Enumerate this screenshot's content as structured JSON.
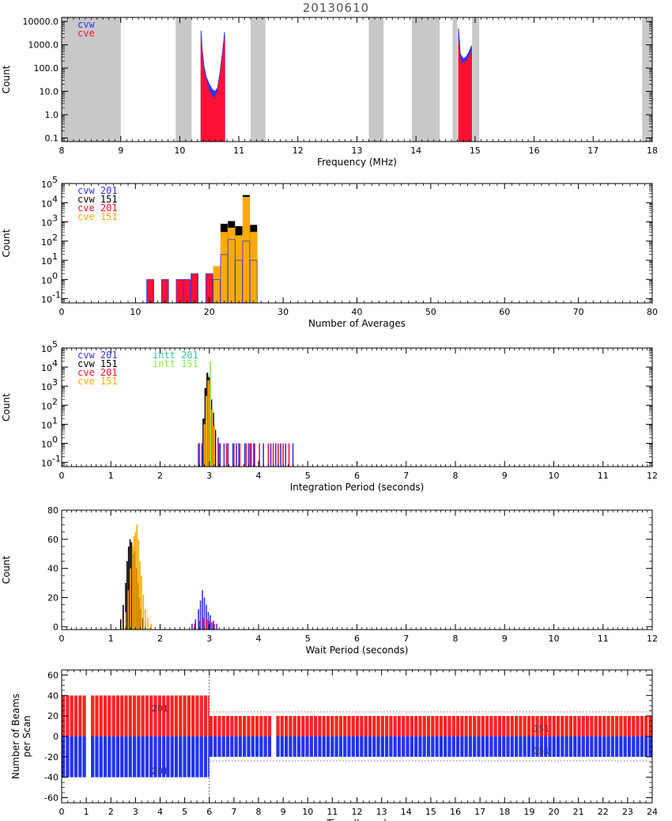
{
  "figure_title": "20130610",
  "colors": {
    "cvw201": "#3333ee",
    "cvw151": "#000000",
    "cve201": "#ff1133",
    "cve151": "#ffaa00",
    "intt201": "#33cc99",
    "intt151": "#88ee44",
    "band": "#c8c8c8",
    "beams_positive": "#ff2222",
    "beams_negative": "#2233ee"
  },
  "chart_data": [
    {
      "id": "frequency",
      "type": "area",
      "xlabel": "Frequency (MHz)",
      "ylabel": "Count",
      "yscale": "log",
      "xlim": [
        8,
        18
      ],
      "ylim": [
        0.07,
        15000
      ],
      "xticks": [
        8,
        9,
        10,
        11,
        12,
        13,
        14,
        15,
        16,
        17,
        18
      ],
      "yticks": [
        0.1,
        1,
        10,
        100,
        1000,
        10000
      ],
      "ytick_labels": [
        "0.1",
        "1.0",
        "10.0",
        "100.0",
        "1000.0",
        "10000.0"
      ],
      "legend": [
        "cvw",
        "cve"
      ],
      "excluded_bands": [
        [
          8.0,
          9.0
        ],
        [
          9.93,
          10.2
        ],
        [
          11.2,
          11.45
        ],
        [
          13.2,
          13.45
        ],
        [
          13.93,
          14.4
        ],
        [
          14.62,
          14.7
        ],
        [
          14.95,
          15.07
        ],
        [
          17.83,
          18.0
        ]
      ],
      "series": [
        {
          "name": "cvw",
          "color_key": "cvw201",
          "segments": [
            {
              "x": [
                10.36,
                10.38,
                10.41,
                10.45,
                10.5,
                10.55,
                10.6,
                10.64,
                10.68,
                10.72,
                10.76
              ],
              "y": [
                4000,
                600,
                120,
                40,
                20,
                12,
                10,
                14,
                60,
                400,
                3500
              ]
            },
            {
              "x": [
                14.72,
                14.75,
                14.8,
                14.85,
                14.9,
                14.94
              ],
              "y": [
                5000,
                400,
                250,
                300,
                500,
                900
              ]
            }
          ]
        },
        {
          "name": "cve",
          "color_key": "cve201",
          "segments": [
            {
              "x": [
                10.36,
                10.38,
                10.41,
                10.45,
                10.5,
                10.55,
                10.6,
                10.64,
                10.68,
                10.72,
                10.76
              ],
              "y": [
                1500,
                250,
                70,
                25,
                10,
                6,
                5,
                10,
                40,
                250,
                1800
              ]
            },
            {
              "x": [
                14.72,
                14.75,
                14.8,
                14.85,
                14.9,
                14.94
              ],
              "y": [
                1200,
                200,
                150,
                200,
                300,
                500
              ]
            }
          ]
        }
      ]
    },
    {
      "id": "averages",
      "type": "bar",
      "xlabel": "Number of Averages",
      "ylabel": "Count",
      "yscale": "log",
      "xlim": [
        0,
        80
      ],
      "ylim": [
        0.06,
        100000
      ],
      "xticks": [
        0,
        10,
        20,
        30,
        40,
        50,
        60,
        70,
        80
      ],
      "yticks": [
        0.1,
        1,
        10,
        100,
        1000,
        10000,
        100000
      ],
      "ytick_labels": [
        "10",
        "10",
        "10",
        "10",
        "10",
        "10",
        "10"
      ],
      "ytick_exponents": [
        "-1",
        "0",
        "1",
        "2",
        "3",
        "4",
        "5"
      ],
      "legend": [
        "cvw 201",
        "cvw 151",
        "cve 201",
        "cve 151"
      ],
      "series": [
        {
          "name": "cvw 151",
          "color_key": "cvw151",
          "style": "fill",
          "x": [
            22,
            23,
            24,
            25,
            26
          ],
          "y": [
            800,
            1100,
            600,
            25000,
            700
          ]
        },
        {
          "name": "cve 201",
          "color_key": "cve201",
          "style": "fill",
          "x": [
            12,
            14,
            16,
            17,
            18,
            20,
            21
          ],
          "y": [
            1,
            1,
            1,
            1,
            2,
            2,
            1
          ]
        },
        {
          "name": "cve 151",
          "color_key": "cve151",
          "style": "fill",
          "x": [
            21,
            22,
            23,
            24,
            25,
            26
          ],
          "y": [
            5,
            300,
            500,
            200,
            20000,
            300
          ]
        },
        {
          "name": "cvw 201",
          "color_key": "cvw201",
          "style": "step",
          "x": [
            12,
            14,
            16,
            17,
            18,
            20,
            21,
            22,
            23,
            24,
            25,
            26
          ],
          "y": [
            1,
            1,
            1,
            1,
            2,
            2,
            1,
            20,
            120,
            10,
            100,
            10
          ]
        }
      ]
    },
    {
      "id": "integration",
      "type": "bar",
      "xlabel": "Integration Period (seconds)",
      "ylabel": "Count",
      "yscale": "log",
      "xlim": [
        0,
        12
      ],
      "ylim": [
        0.06,
        100000
      ],
      "xticks": [
        0,
        1,
        2,
        3,
        4,
        5,
        6,
        7,
        8,
        9,
        10,
        11,
        12
      ],
      "yticks": [
        0.1,
        1,
        10,
        100,
        1000,
        10000,
        100000
      ],
      "ytick_labels": [
        "10",
        "10",
        "10",
        "10",
        "10",
        "10",
        "10"
      ],
      "ytick_exponents": [
        "-1",
        "0",
        "1",
        "2",
        "3",
        "4",
        "5"
      ],
      "legend": [
        "cvw 201",
        "cvw 151",
        "cve 201",
        "cve 151",
        "intt 201",
        "intt 151"
      ],
      "series": [
        {
          "name": "cvw 151",
          "color_key": "cvw151",
          "style": "fill",
          "x": [
            2.88,
            2.92,
            2.96,
            3.0,
            3.04,
            3.08,
            3.12
          ],
          "y": [
            20,
            800,
            5000,
            3000,
            200,
            40,
            5
          ]
        },
        {
          "name": "cve 151",
          "color_key": "cve151",
          "style": "fill",
          "x": [
            2.9,
            2.94,
            2.98,
            3.02,
            3.06,
            3.1
          ],
          "y": [
            10,
            300,
            2000,
            1200,
            60,
            8
          ]
        },
        {
          "name": "intt 151",
          "color_key": "intt151",
          "style": "spike",
          "x": [
            3.02
          ],
          "y": [
            20000
          ]
        },
        {
          "name": "cvw 201",
          "color_key": "cvw201",
          "style": "spike",
          "x": [
            2.78,
            2.85,
            3.18,
            3.22,
            3.3,
            3.38,
            3.48,
            3.55,
            3.6,
            3.72,
            3.8,
            3.85,
            3.92,
            4.1,
            4.25,
            4.35,
            4.45,
            4.55,
            4.7
          ],
          "y": [
            1,
            1,
            2,
            1,
            1,
            1,
            1,
            1,
            1,
            1,
            1,
            1,
            1,
            1,
            1,
            1,
            1,
            1,
            1
          ]
        },
        {
          "name": "cve 201",
          "color_key": "cve201",
          "style": "spike",
          "x": [
            2.8,
            3.2,
            3.35,
            3.5,
            3.62,
            3.75,
            3.83,
            3.9,
            4.02,
            4.2,
            4.3,
            4.4,
            4.5,
            4.62
          ],
          "y": [
            1,
            1,
            1,
            1,
            1,
            1,
            1,
            1,
            1,
            1,
            1,
            1,
            1,
            1
          ]
        }
      ]
    },
    {
      "id": "wait",
      "type": "bar",
      "xlabel": "Wait Period (seconds)",
      "ylabel": "Count",
      "yscale": "linear",
      "xlim": [
        0,
        12
      ],
      "ylim": [
        -2,
        80
      ],
      "xticks": [
        0,
        1,
        2,
        3,
        4,
        5,
        6,
        7,
        8,
        9,
        10,
        11,
        12
      ],
      "yticks": [
        0,
        20,
        40,
        60,
        80
      ],
      "series": [
        {
          "name": "cvw 151",
          "color_key": "cvw151",
          "style": "spike",
          "x": [
            1.2,
            1.25,
            1.3,
            1.33,
            1.36,
            1.39,
            1.42,
            1.45,
            1.48,
            1.51,
            1.54,
            1.57,
            1.6,
            1.65,
            1.7
          ],
          "y": [
            5,
            15,
            30,
            45,
            55,
            60,
            58,
            50,
            52,
            40,
            30,
            20,
            12,
            6,
            2
          ]
        },
        {
          "name": "cve 151",
          "color_key": "cve151",
          "style": "spike",
          "x": [
            1.3,
            1.35,
            1.4,
            1.44,
            1.47,
            1.5,
            1.53,
            1.56,
            1.59,
            1.62,
            1.66,
            1.7,
            1.75,
            1.82
          ],
          "y": [
            10,
            25,
            40,
            55,
            62,
            65,
            70,
            60,
            45,
            35,
            22,
            12,
            6,
            2
          ]
        },
        {
          "name": "cvw 201",
          "color_key": "cvw201",
          "style": "spike",
          "x": [
            2.65,
            2.72,
            2.78,
            2.82,
            2.86,
            2.9,
            2.94,
            2.98,
            3.02,
            3.08,
            3.15
          ],
          "y": [
            2,
            5,
            12,
            18,
            25,
            20,
            15,
            10,
            8,
            4,
            2
          ]
        },
        {
          "name": "cve 201",
          "color_key": "cve201",
          "style": "spike",
          "x": [
            2.7,
            2.8,
            2.88,
            2.95,
            3.0,
            3.05,
            3.1
          ],
          "y": [
            2,
            4,
            6,
            5,
            4,
            3,
            2
          ]
        }
      ]
    },
    {
      "id": "beams",
      "type": "bar",
      "xlabel": "Time (hours)",
      "ylabel_lines": [
        "Number of Beams",
        "per Scan"
      ],
      "yscale": "linear",
      "xlim": [
        0,
        24
      ],
      "ylim": [
        -65,
        65
      ],
      "xticks": [
        0,
        1,
        2,
        3,
        4,
        5,
        6,
        7,
        8,
        9,
        10,
        11,
        12,
        13,
        14,
        15,
        16,
        17,
        18,
        19,
        20,
        21,
        22,
        23,
        24
      ],
      "yticks": [
        -60,
        -40,
        -20,
        0,
        20,
        40,
        60
      ],
      "regime_boundary_hours": 6,
      "segments": [
        {
          "x_start": 0,
          "x_end": 6,
          "beams": 40,
          "label": "201",
          "data_gaps": [
            0.95,
            1.1
          ]
        },
        {
          "x_start": 6,
          "x_end": 24,
          "beams": 20,
          "label": "151",
          "data_gaps": [
            8.55,
            8.75
          ]
        }
      ],
      "reference_lines": [
        24,
        -24
      ],
      "segment_labels": {
        "first": "201",
        "second": "151"
      }
    }
  ]
}
